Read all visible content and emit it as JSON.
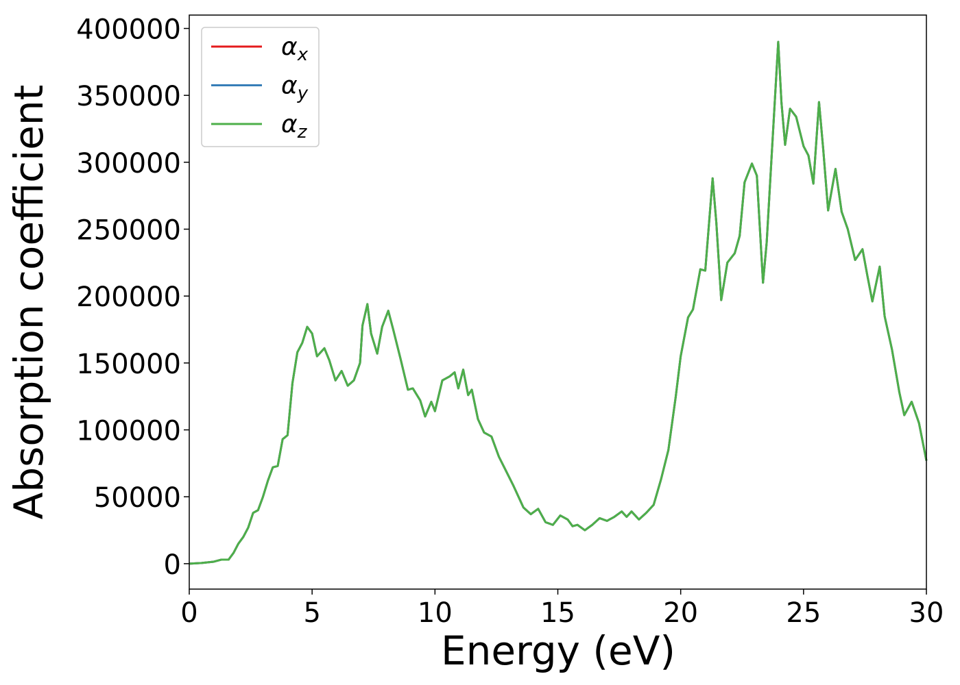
{
  "chart_data": {
    "type": "line",
    "xlabel": "Energy (eV)",
    "ylabel": "Absorption coefficient",
    "x": [
      0,
      0.5,
      1,
      1.3,
      1.6,
      1.8,
      2,
      2.2,
      2.4,
      2.6,
      2.8,
      3,
      3.2,
      3.4,
      3.6,
      3.8,
      4,
      4.2,
      4.4,
      4.6,
      4.8,
      5,
      5.2,
      5.5,
      5.7,
      5.95,
      6.2,
      6.45,
      6.7,
      6.95,
      7.05,
      7.25,
      7.4,
      7.65,
      7.85,
      8.1,
      8.3,
      8.6,
      8.9,
      9.1,
      9.4,
      9.6,
      9.85,
      10,
      10.3,
      10.6,
      10.8,
      10.95,
      11.15,
      11.35,
      11.5,
      11.75,
      12,
      12.3,
      12.6,
      12.9,
      13.2,
      13.6,
      13.9,
      14.2,
      14.5,
      14.8,
      15.1,
      15.4,
      15.6,
      15.8,
      16.1,
      16.4,
      16.7,
      17,
      17.3,
      17.6,
      17.8,
      18,
      18.3,
      18.6,
      18.9,
      19.2,
      19.5,
      19.8,
      20,
      20.3,
      20.5,
      20.8,
      21,
      21.3,
      21.45,
      21.65,
      21.9,
      22.2,
      22.4,
      22.6,
      22.9,
      23.1,
      23.35,
      23.5,
      23.75,
      23.97,
      24.1,
      24.25,
      24.45,
      24.7,
      25,
      25.2,
      25.4,
      25.63,
      25.8,
      26,
      26.3,
      26.55,
      26.8,
      27.1,
      27.4,
      27.6,
      27.8,
      28.1,
      28.3,
      28.6,
      28.9,
      29.1,
      29.4,
      29.7,
      30
    ],
    "series": [
      {
        "name": "αx",
        "color": "#e41a1c",
        "values": [
          0,
          500,
          1500,
          3000,
          3000,
          8000,
          15000,
          20000,
          27000,
          38000,
          40000,
          50000,
          62000,
          72000,
          73000,
          93000,
          96000,
          135000,
          158000,
          165000,
          177000,
          172000,
          155000,
          161000,
          152000,
          137000,
          144000,
          133000,
          137000,
          150000,
          178000,
          194000,
          172000,
          157000,
          177000,
          189000,
          175000,
          153000,
          130000,
          131000,
          122000,
          110000,
          121000,
          114000,
          137000,
          140000,
          143000,
          131000,
          145000,
          126000,
          130000,
          108000,
          98000,
          95000,
          80000,
          69000,
          58000,
          42000,
          37000,
          41000,
          31000,
          29000,
          36000,
          33000,
          28000,
          29000,
          25000,
          29000,
          34000,
          32000,
          35000,
          39000,
          35000,
          39000,
          33000,
          38000,
          44000,
          63000,
          85000,
          125000,
          155000,
          184000,
          190000,
          220000,
          219000,
          288000,
          255000,
          197000,
          225000,
          232000,
          245000,
          285000,
          299000,
          290000,
          210000,
          240000,
          320000,
          390000,
          345000,
          313000,
          340000,
          334000,
          312000,
          305000,
          284000,
          345000,
          310000,
          264000,
          295000,
          263000,
          250000,
          227000,
          235000,
          215000,
          196000,
          222000,
          185000,
          160000,
          128000,
          111000,
          121000,
          105000,
          77000
        ]
      },
      {
        "name": "αy",
        "color": "#377eb8",
        "values": [
          0,
          500,
          1500,
          3000,
          3000,
          8000,
          15000,
          20000,
          27000,
          38000,
          40000,
          50000,
          62000,
          72000,
          73000,
          93000,
          96000,
          135000,
          158000,
          165000,
          177000,
          172000,
          155000,
          161000,
          152000,
          137000,
          144000,
          133000,
          137000,
          150000,
          178000,
          194000,
          172000,
          157000,
          177000,
          189000,
          175000,
          153000,
          130000,
          131000,
          122000,
          110000,
          121000,
          114000,
          137000,
          140000,
          143000,
          131000,
          145000,
          126000,
          130000,
          108000,
          98000,
          95000,
          80000,
          69000,
          58000,
          42000,
          37000,
          41000,
          31000,
          29000,
          36000,
          33000,
          28000,
          29000,
          25000,
          29000,
          34000,
          32000,
          35000,
          39000,
          35000,
          39000,
          33000,
          38000,
          44000,
          63000,
          85000,
          125000,
          155000,
          184000,
          190000,
          220000,
          219000,
          288000,
          255000,
          197000,
          225000,
          232000,
          245000,
          285000,
          299000,
          290000,
          210000,
          240000,
          320000,
          390000,
          345000,
          313000,
          340000,
          334000,
          312000,
          305000,
          284000,
          345000,
          310000,
          264000,
          295000,
          263000,
          250000,
          227000,
          235000,
          215000,
          196000,
          222000,
          185000,
          160000,
          128000,
          111000,
          121000,
          105000,
          77000
        ]
      },
      {
        "name": "αz",
        "color": "#4daf4a",
        "values": [
          0,
          500,
          1500,
          3000,
          3000,
          8000,
          15000,
          20000,
          27000,
          38000,
          40000,
          50000,
          62000,
          72000,
          73000,
          93000,
          96000,
          135000,
          158000,
          165000,
          177000,
          172000,
          155000,
          161000,
          152000,
          137000,
          144000,
          133000,
          137000,
          150000,
          178000,
          194000,
          172000,
          157000,
          177000,
          189000,
          175000,
          153000,
          130000,
          131000,
          122000,
          110000,
          121000,
          114000,
          137000,
          140000,
          143000,
          131000,
          145000,
          126000,
          130000,
          108000,
          98000,
          95000,
          80000,
          69000,
          58000,
          42000,
          37000,
          41000,
          31000,
          29000,
          36000,
          33000,
          28000,
          29000,
          25000,
          29000,
          34000,
          32000,
          35000,
          39000,
          35000,
          39000,
          33000,
          38000,
          44000,
          63000,
          85000,
          125000,
          155000,
          184000,
          190000,
          220000,
          219000,
          288000,
          255000,
          197000,
          225000,
          232000,
          245000,
          285000,
          299000,
          290000,
          210000,
          240000,
          320000,
          390000,
          345000,
          313000,
          340000,
          334000,
          312000,
          305000,
          284000,
          345000,
          310000,
          264000,
          295000,
          263000,
          250000,
          227000,
          235000,
          215000,
          196000,
          222000,
          185000,
          160000,
          128000,
          111000,
          121000,
          105000,
          77000
        ]
      }
    ],
    "xlim": [
      0,
      30
    ],
    "xticks": [
      0,
      5,
      10,
      15,
      20,
      25,
      30
    ],
    "ylim": [
      -19000,
      410000
    ],
    "yticks": [
      0,
      50000,
      100000,
      150000,
      200000,
      250000,
      300000,
      350000,
      400000
    ],
    "legend": "upper left"
  }
}
